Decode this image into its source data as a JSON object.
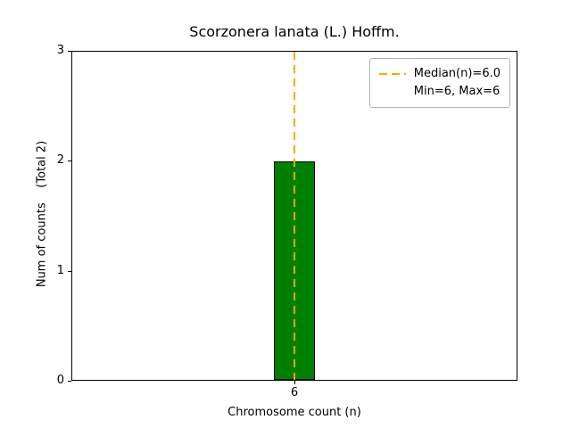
{
  "figure": {
    "title": "Scorzonera lanata (L.) Hoffm.",
    "xlabel": "Chromosome count (n)",
    "ylabel": "Num of counts    (Total 2)",
    "legend": {
      "median_label": "Median(n)=6.0",
      "minmax_label": "Min=6, Max=6"
    }
  },
  "chart_data": {
    "type": "bar",
    "title": "Scorzonera lanata (L.) Hoffm.",
    "xlabel": "Chromosome count (n)",
    "ylabel": "Num of counts (Total 2)",
    "categories": [
      "6"
    ],
    "values": [
      2
    ],
    "total": 2,
    "ylim": [
      0,
      3
    ],
    "yticks": [
      0,
      1,
      2,
      3
    ],
    "median_n": 6.0,
    "min_n": 6,
    "max_n": 6,
    "grid": false,
    "legend_position": "upper right",
    "colors": {
      "bar_fill": "#008000",
      "bar_edge": "#000000",
      "median_line": "#ffa500",
      "axis": "#000000",
      "legend_border": "#b3b3b3"
    }
  }
}
